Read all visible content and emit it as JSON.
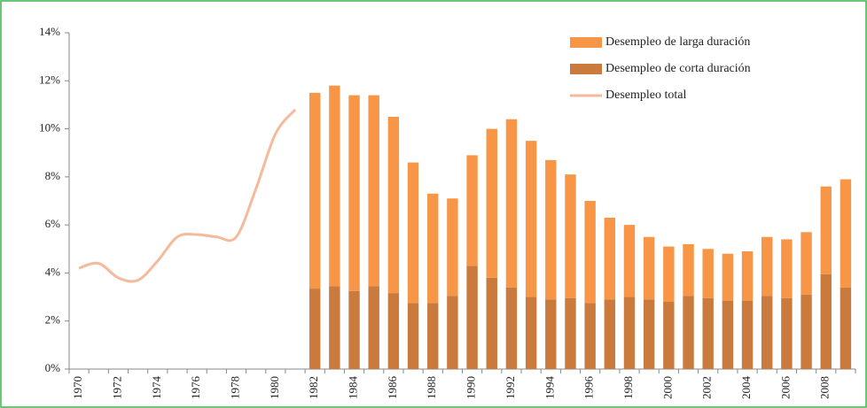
{
  "chart_data": {
    "type": "bar",
    "stacked": true,
    "categories": [
      "1970",
      null,
      "1972",
      null,
      "1974",
      null,
      "1976",
      null,
      "1978",
      null,
      "1980",
      null,
      "1982",
      null,
      "1984",
      null,
      "1986",
      null,
      "1988",
      null,
      "1990",
      null,
      "1992",
      null,
      "1994",
      null,
      "1996",
      null,
      "1998",
      null,
      "2000",
      null,
      "2002",
      null,
      "2004",
      null,
      "2006",
      null,
      "2008",
      null
    ],
    "series": [
      {
        "name": "Desempleo de corta duración",
        "color": "#c97a3c",
        "type": "bar",
        "values": [
          null,
          null,
          null,
          null,
          null,
          null,
          null,
          null,
          null,
          null,
          null,
          null,
          3.35,
          3.45,
          3.25,
          3.45,
          3.15,
          2.75,
          2.75,
          3.05,
          4.3,
          3.8,
          3.4,
          3.0,
          2.9,
          2.95,
          2.75,
          2.9,
          3.0,
          2.9,
          2.8,
          3.05,
          2.95,
          2.85,
          2.85,
          3.05,
          2.95,
          3.1,
          3.95,
          3.4
        ]
      },
      {
        "name": "Desempleo de larga duración",
        "color": "#f79646",
        "type": "bar",
        "values": [
          null,
          null,
          null,
          null,
          null,
          null,
          null,
          null,
          null,
          null,
          null,
          null,
          8.15,
          8.35,
          8.15,
          7.95,
          7.35,
          5.85,
          4.55,
          4.05,
          4.6,
          6.2,
          7.0,
          6.5,
          5.8,
          5.15,
          4.25,
          3.4,
          3.0,
          2.6,
          2.3,
          2.15,
          2.05,
          1.95,
          2.05,
          2.45,
          2.45,
          2.6,
          3.65,
          4.5
        ]
      },
      {
        "name": "Desempleo total",
        "color": "#f5b99c",
        "type": "line",
        "values": [
          4.2,
          4.4,
          3.8,
          3.7,
          4.5,
          5.5,
          5.6,
          5.5,
          5.5,
          7.5,
          9.8,
          10.8,
          null,
          null,
          null,
          null,
          null,
          null,
          null,
          null,
          null,
          null,
          null,
          null,
          null,
          null,
          null,
          null,
          null,
          null,
          null,
          null,
          null,
          null,
          null,
          null,
          null,
          null,
          null,
          null
        ]
      }
    ],
    "legend_order": [
      1,
      0,
      2
    ],
    "legend": "upper right",
    "ylim": [
      0,
      14
    ],
    "yticks": [
      {
        "value": 0,
        "label": "0%"
      },
      {
        "value": 2,
        "label": "2%"
      },
      {
        "value": 4,
        "label": "4%"
      },
      {
        "value": 6,
        "label": "6%"
      },
      {
        "value": 8,
        "label": "8%"
      },
      {
        "value": 10,
        "label": "10%"
      },
      {
        "value": 12,
        "label": "12%"
      },
      {
        "value": 14,
        "label": "14%"
      }
    ]
  }
}
